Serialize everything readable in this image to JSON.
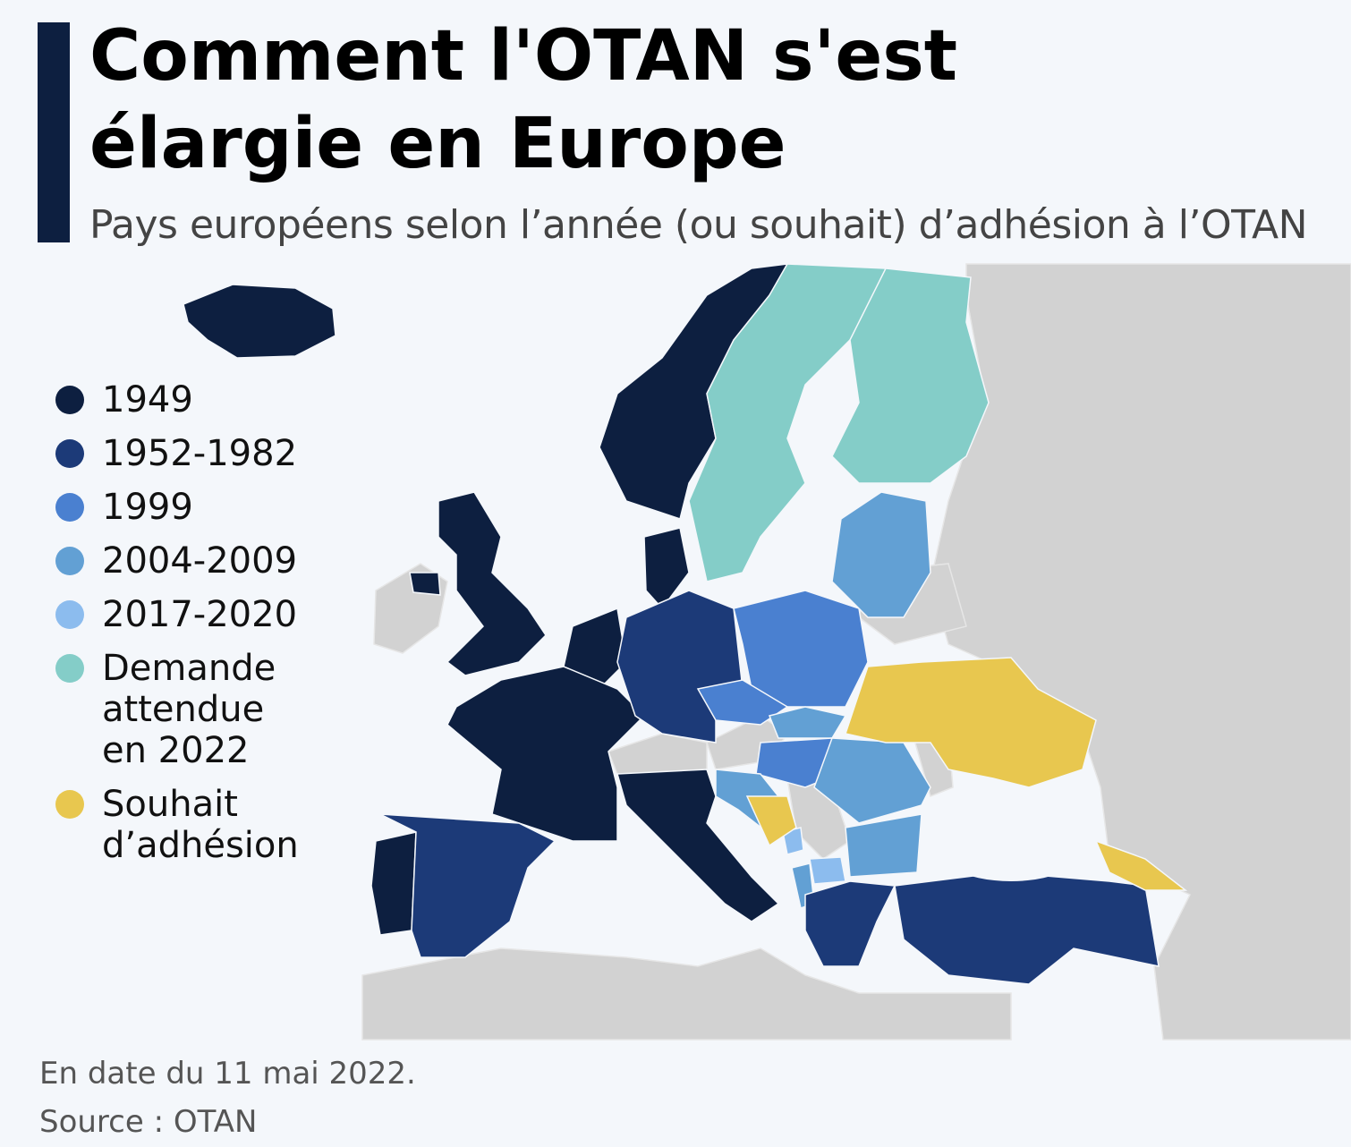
{
  "header": {
    "title": "Comment l'OTAN s'est élargie en Europe",
    "subtitle": "Pays européens selon l’année (ou souhait) d’adhésion à l’OTAN"
  },
  "legend": [
    {
      "label": "1949",
      "color": "#0d1f40"
    },
    {
      "label": "1952-1982",
      "color": "#1c3a78"
    },
    {
      "label": "1999",
      "color": "#4a80d0"
    },
    {
      "label": "2004-2009",
      "color": "#62a0d4"
    },
    {
      "label": "2017-2020",
      "color": "#8cbcee"
    },
    {
      "label": "Demande attendue en 2022",
      "color": "#84cdc8"
    },
    {
      "label": "Souhait d’adhésion",
      "color": "#e8c74f"
    }
  ],
  "footer": {
    "date": "En date du 11 mai 2022.",
    "source": "Source : OTAN"
  }
}
